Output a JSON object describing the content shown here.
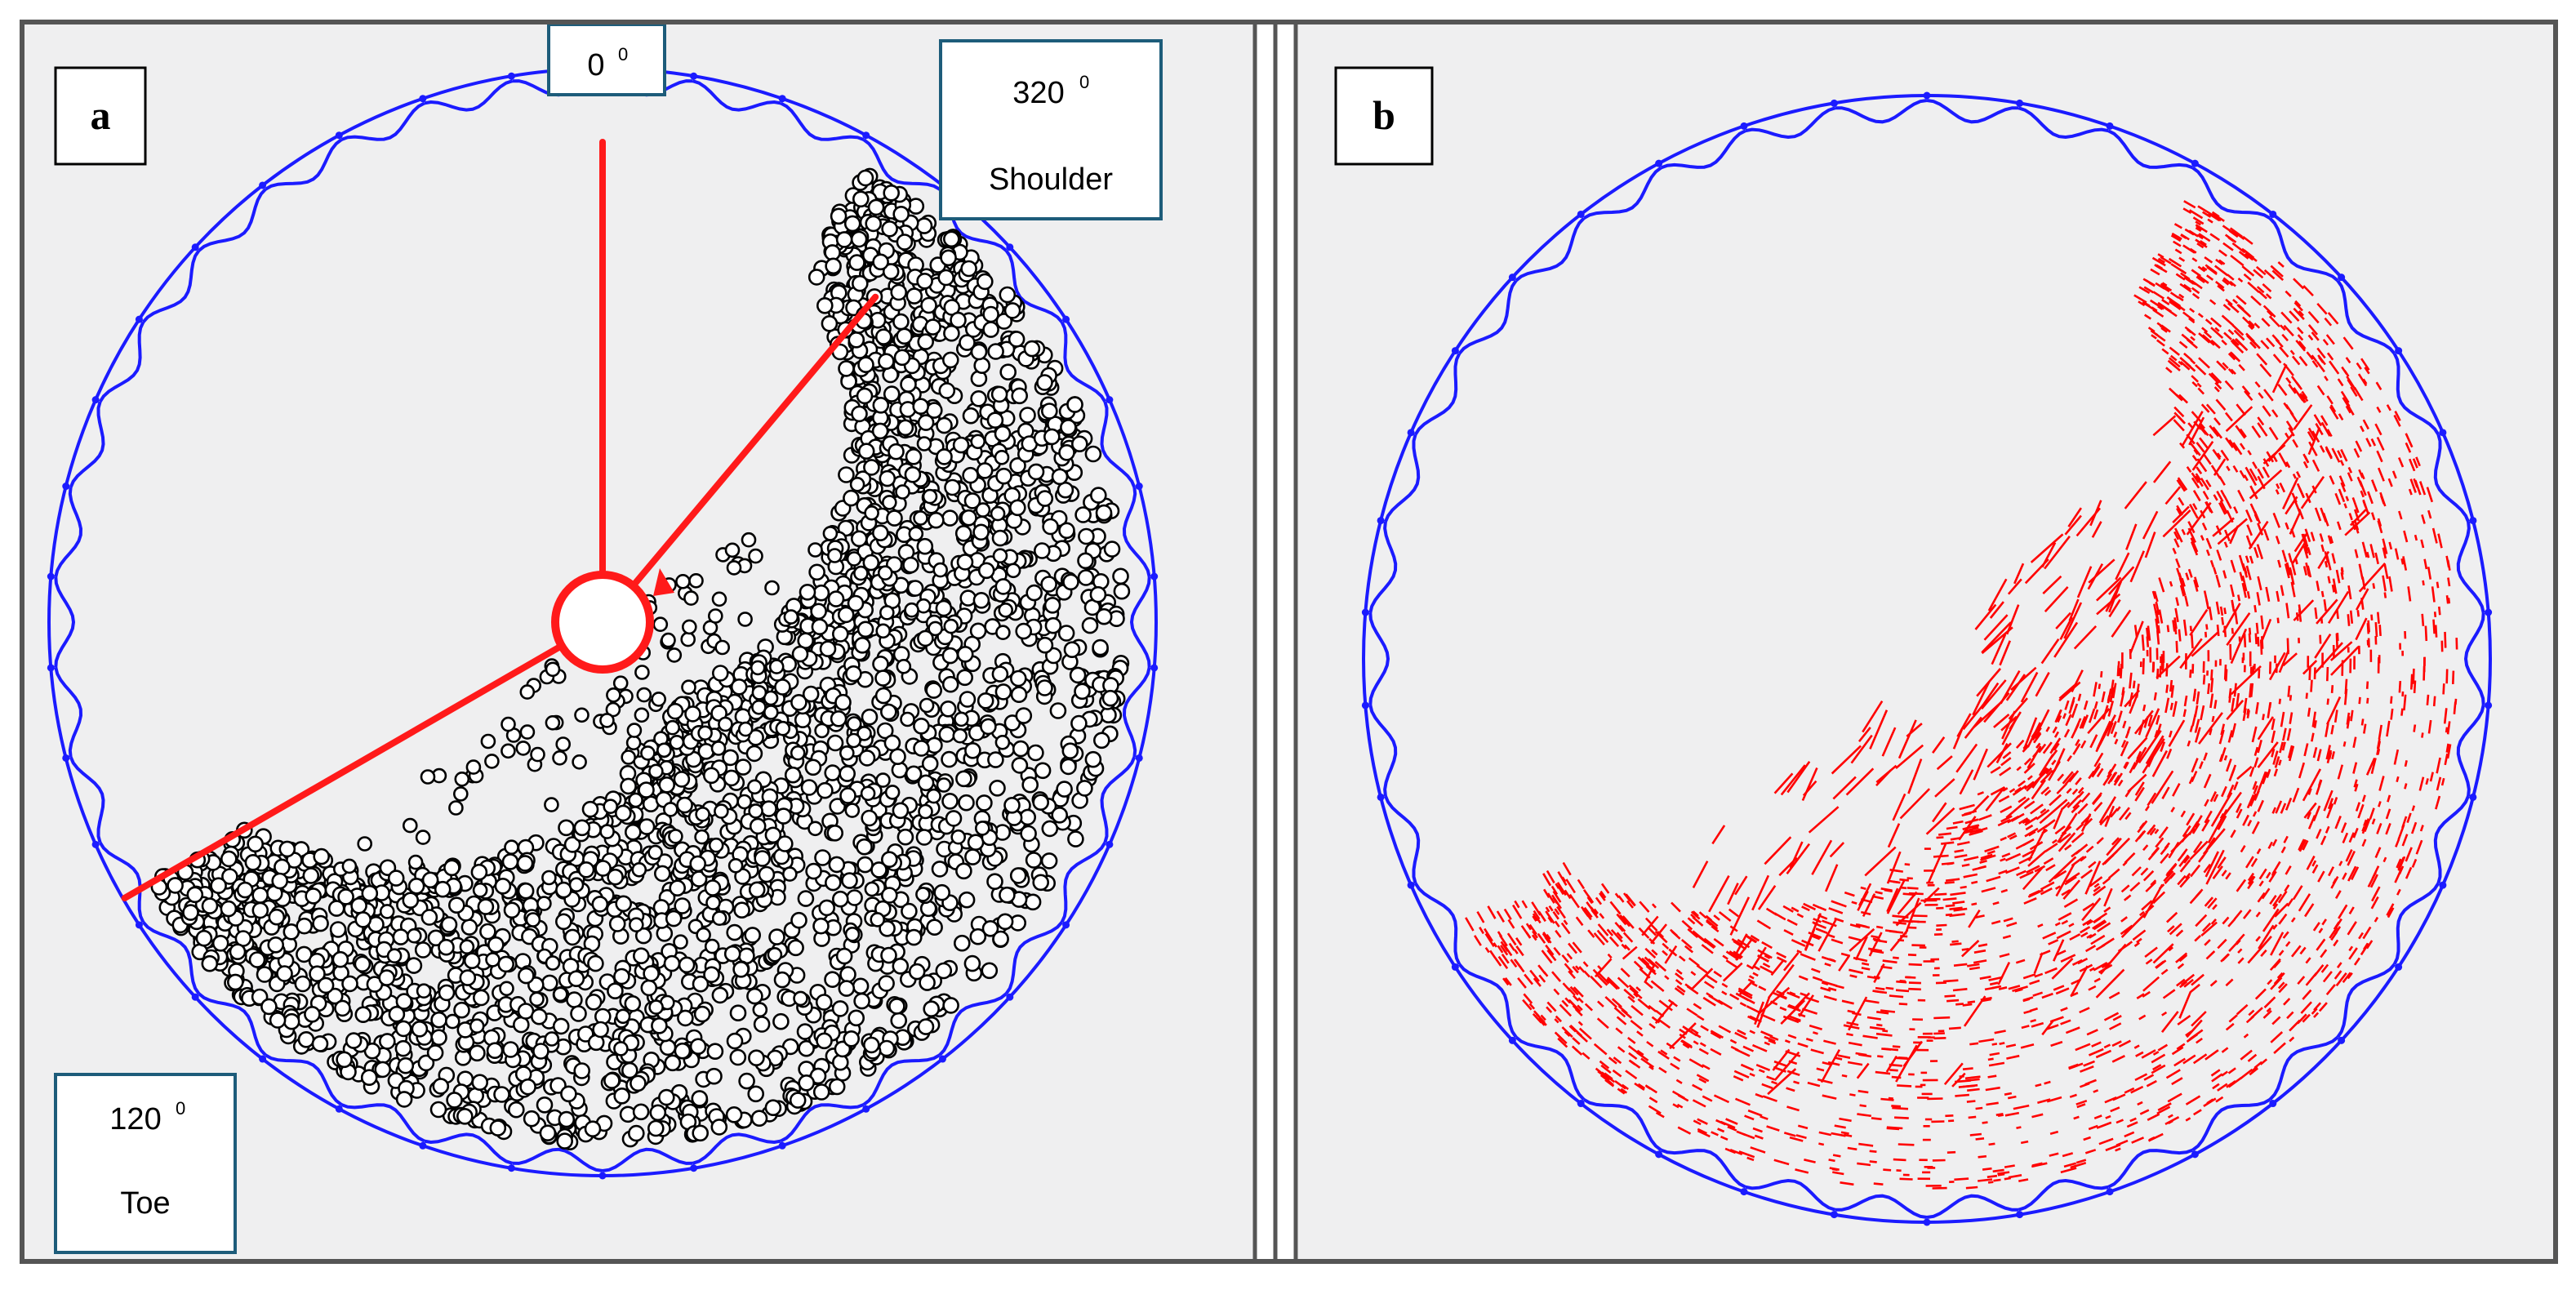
{
  "figure": {
    "panels": [
      {
        "letter": "a",
        "description_role": "particle positions",
        "angle_labels": [
          {
            "value": "0",
            "unit": "0",
            "name": ""
          },
          {
            "value": "320",
            "unit": "0",
            "name": "Shoulder"
          },
          {
            "value": "120",
            "unit": "0",
            "name": "Toe"
          }
        ]
      },
      {
        "letter": "b",
        "description_role": "particle velocity vectors"
      }
    ],
    "mill": {
      "lifter_count": 38,
      "arm_angles_deg_from_top_clockwise": [
        0,
        40,
        240
      ],
      "charge_arc_start_deg": 30,
      "charge_arc_end_deg": 240
    }
  },
  "colors": {
    "shell": "#1b1bff",
    "particle_outline": "#000000",
    "vector": "#ff0000",
    "arm": "#ff1a1a",
    "panel_background": "#efeff0"
  }
}
